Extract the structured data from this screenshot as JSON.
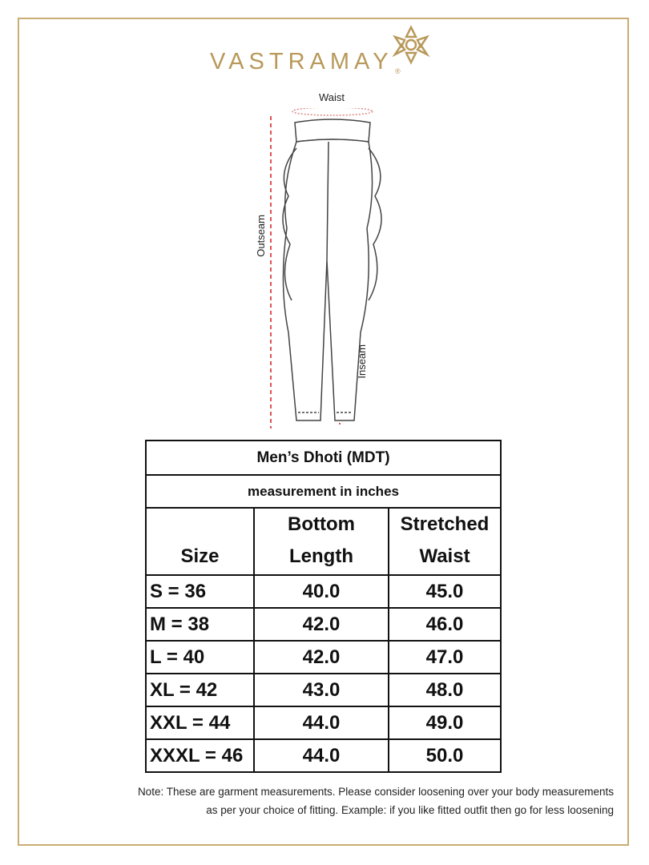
{
  "brand": {
    "name": "VASTRAMAY",
    "registered": "®",
    "color": "#b8995a"
  },
  "diagram": {
    "waist_label": "Waist",
    "outseam_label": "Outseam",
    "inseam_label": "Inseam"
  },
  "table": {
    "title": "Men’s Dhoti (MDT)",
    "subtitle": "measurement in inches",
    "headers": [
      {
        "line1": "",
        "line2": "Size"
      },
      {
        "line1": "Bottom",
        "line2": "Length"
      },
      {
        "line1": "Stretched",
        "line2": "Waist"
      }
    ],
    "rows": [
      [
        "S = 36",
        "40.0",
        "45.0"
      ],
      [
        "M = 38",
        "42.0",
        "46.0"
      ],
      [
        "L = 40",
        "42.0",
        "47.0"
      ],
      [
        "XL = 42",
        "43.0",
        "48.0"
      ],
      [
        "XXL = 44",
        "44.0",
        "49.0"
      ],
      [
        "XXXL = 46",
        "44.0",
        "50.0"
      ]
    ]
  },
  "note": {
    "line1": "Note: These are garment measurements. Please consider loosening over your body measurements",
    "line2": "as per your choice of fitting. Example: if you like fitted outfit then go for less loosening"
  }
}
